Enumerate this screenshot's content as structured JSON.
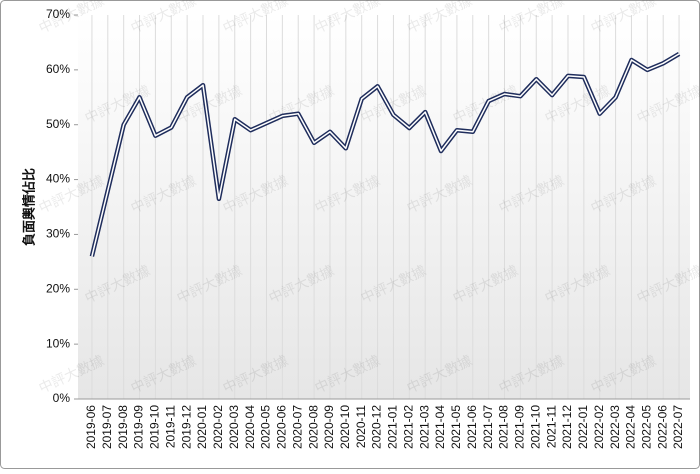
{
  "chart_data": {
    "type": "line",
    "ylabel": "負面輿情佔比",
    "watermark": "中評大數據",
    "categories": [
      "2019-06",
      "2019-07",
      "2019-08",
      "2019-09",
      "2019-10",
      "2019-11",
      "2019-12",
      "2020-01",
      "2020-02",
      "2020-03",
      "2020-04",
      "2020-05",
      "2020-06",
      "2020-07",
      "2020-08",
      "2020-09",
      "2020-10",
      "2020-11",
      "2020-12",
      "2021-01",
      "2021-02",
      "2021-03",
      "2021-04",
      "2021-05",
      "2021-06",
      "2021-07",
      "2021-08",
      "2021-09",
      "2021-10",
      "2021-11",
      "2021-12",
      "2022-01",
      "2022-02",
      "2022-03",
      "2022-04",
      "2022-05",
      "2022-06",
      "2022-07"
    ],
    "values": [
      26,
      38,
      50,
      55,
      48,
      49.5,
      55,
      57.2,
      36.5,
      51,
      49,
      50.3,
      51.6,
      52,
      46.7,
      48.7,
      45.7,
      54.7,
      57,
      51.8,
      49.4,
      52.3,
      45.2,
      49,
      48.7,
      54.3,
      55.6,
      55.2,
      58.3,
      55.4,
      58.9,
      58.7,
      52,
      55,
      61.8,
      60,
      61.2,
      62.9
    ],
    "color": "#1f2d5c",
    "ylim": [
      0,
      70
    ],
    "yticks": [
      {
        "value": 0,
        "label": "0%"
      },
      {
        "value": 10,
        "label": "10%"
      },
      {
        "value": 20,
        "label": "20%"
      },
      {
        "value": 30,
        "label": "30%"
      },
      {
        "value": 40,
        "label": "40%"
      },
      {
        "value": 50,
        "label": "50%"
      },
      {
        "value": 60,
        "label": "60%"
      },
      {
        "value": 70,
        "label": "70%"
      }
    ],
    "grid": true
  }
}
